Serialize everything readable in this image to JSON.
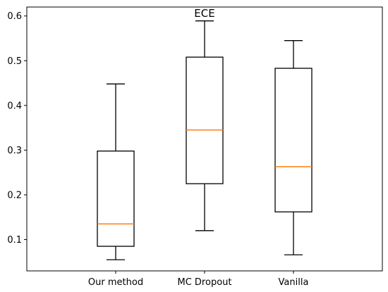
{
  "chart_data": {
    "type": "box",
    "title": "ECE",
    "xlabel": "",
    "ylabel": "",
    "categories": [
      "Our method",
      "MC Dropout",
      "Vanilla"
    ],
    "yticks": [
      0.1,
      0.2,
      0.3,
      0.4,
      0.5,
      0.6
    ],
    "ylim": [
      0.03,
      0.62
    ],
    "grid": false,
    "boxes": [
      {
        "label": "Our method",
        "whisker_low": 0.055,
        "q1": 0.085,
        "median": 0.135,
        "q3": 0.298,
        "whisker_high": 0.448
      },
      {
        "label": "MC Dropout",
        "whisker_low": 0.12,
        "q1": 0.225,
        "median": 0.345,
        "q3": 0.508,
        "whisker_high": 0.589
      },
      {
        "label": "Vanilla",
        "whisker_low": 0.066,
        "q1": 0.162,
        "median": 0.263,
        "q3": 0.483,
        "whisker_high": 0.545
      }
    ],
    "colors": {
      "box": "#000000",
      "median": "#ff7f0e",
      "axes": "#000000"
    }
  }
}
